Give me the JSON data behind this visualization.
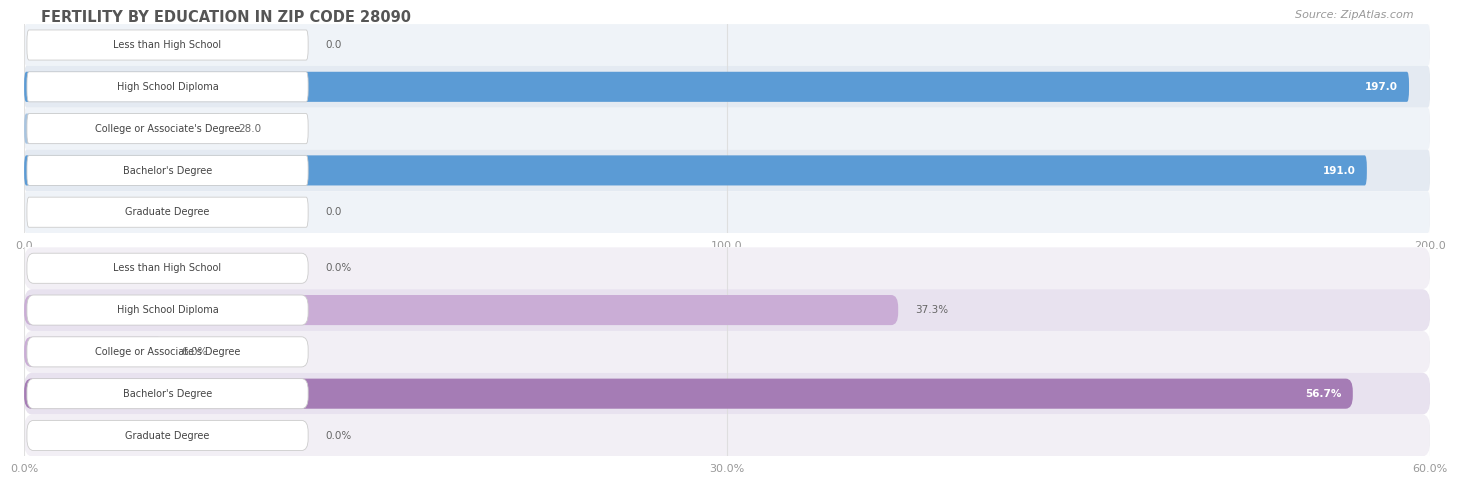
{
  "title": "FERTILITY BY EDUCATION IN ZIP CODE 28090",
  "source": "Source: ZipAtlas.com",
  "top_chart": {
    "categories": [
      "Less than High School",
      "High School Diploma",
      "College or Associate's Degree",
      "Bachelor's Degree",
      "Graduate Degree"
    ],
    "values": [
      0.0,
      197.0,
      28.0,
      191.0,
      0.0
    ],
    "labels": [
      "0.0",
      "197.0",
      "28.0",
      "191.0",
      "0.0"
    ],
    "xlim": [
      0,
      200.0
    ],
    "xticks": [
      0.0,
      100.0,
      200.0
    ],
    "bar_color_light": "#a8c4e0",
    "bar_color_dark": "#5b9bd5",
    "row_color_odd": "#eff3f8",
    "row_color_even": "#e4eaf2",
    "threshold": 150
  },
  "bottom_chart": {
    "categories": [
      "Less than High School",
      "High School Diploma",
      "College or Associate's Degree",
      "Bachelor's Degree",
      "Graduate Degree"
    ],
    "values": [
      0.0,
      37.3,
      6.0,
      56.7,
      0.0
    ],
    "labels": [
      "0.0%",
      "37.3%",
      "6.0%",
      "56.7%",
      "0.0%"
    ],
    "xlim": [
      0,
      60.0
    ],
    "xticks": [
      0.0,
      30.0,
      60.0
    ],
    "bar_color_light": "#caadd6",
    "bar_color_dark": "#a57cb5",
    "row_color_odd": "#f2eff5",
    "row_color_even": "#e8e2ef",
    "threshold": 45
  },
  "fig_bg": "#ffffff",
  "title_color": "#555555",
  "source_color": "#999999",
  "tick_color": "#999999",
  "grid_color": "#dddddd",
  "label_box_bg": "#ffffff",
  "label_box_edge": "#cccccc",
  "label_text_color": "#444444"
}
